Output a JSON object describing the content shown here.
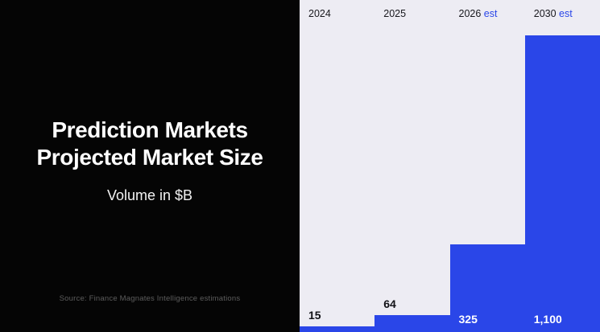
{
  "left_panel": {
    "title": "Prediction Markets Projected Market Size",
    "subtitle": "Volume in $B",
    "source": "Source: Finance Magnates Intelligence estimations"
  },
  "chart_data": {
    "type": "bar",
    "title": "Prediction Markets Projected Market Size",
    "ylabel": "Volume in $B",
    "categories": [
      {
        "label": "2024",
        "est": ""
      },
      {
        "label": "2025",
        "est": ""
      },
      {
        "label": "2026",
        "est": "est"
      },
      {
        "label": "2030",
        "est": "est"
      }
    ],
    "values": [
      15,
      64,
      325,
      1100
    ],
    "value_labels": [
      "15",
      "64",
      "325",
      "1,100"
    ],
    "ylim": [
      0,
      1100
    ],
    "legend": "none",
    "grid": "off",
    "colors": {
      "bar": "#2a46e8",
      "est_text": "#2a46e8",
      "chart_background": "#edecf3",
      "panel_background": "#050505",
      "label_dark": "#111116",
      "label_light": "#ffffff"
    }
  }
}
